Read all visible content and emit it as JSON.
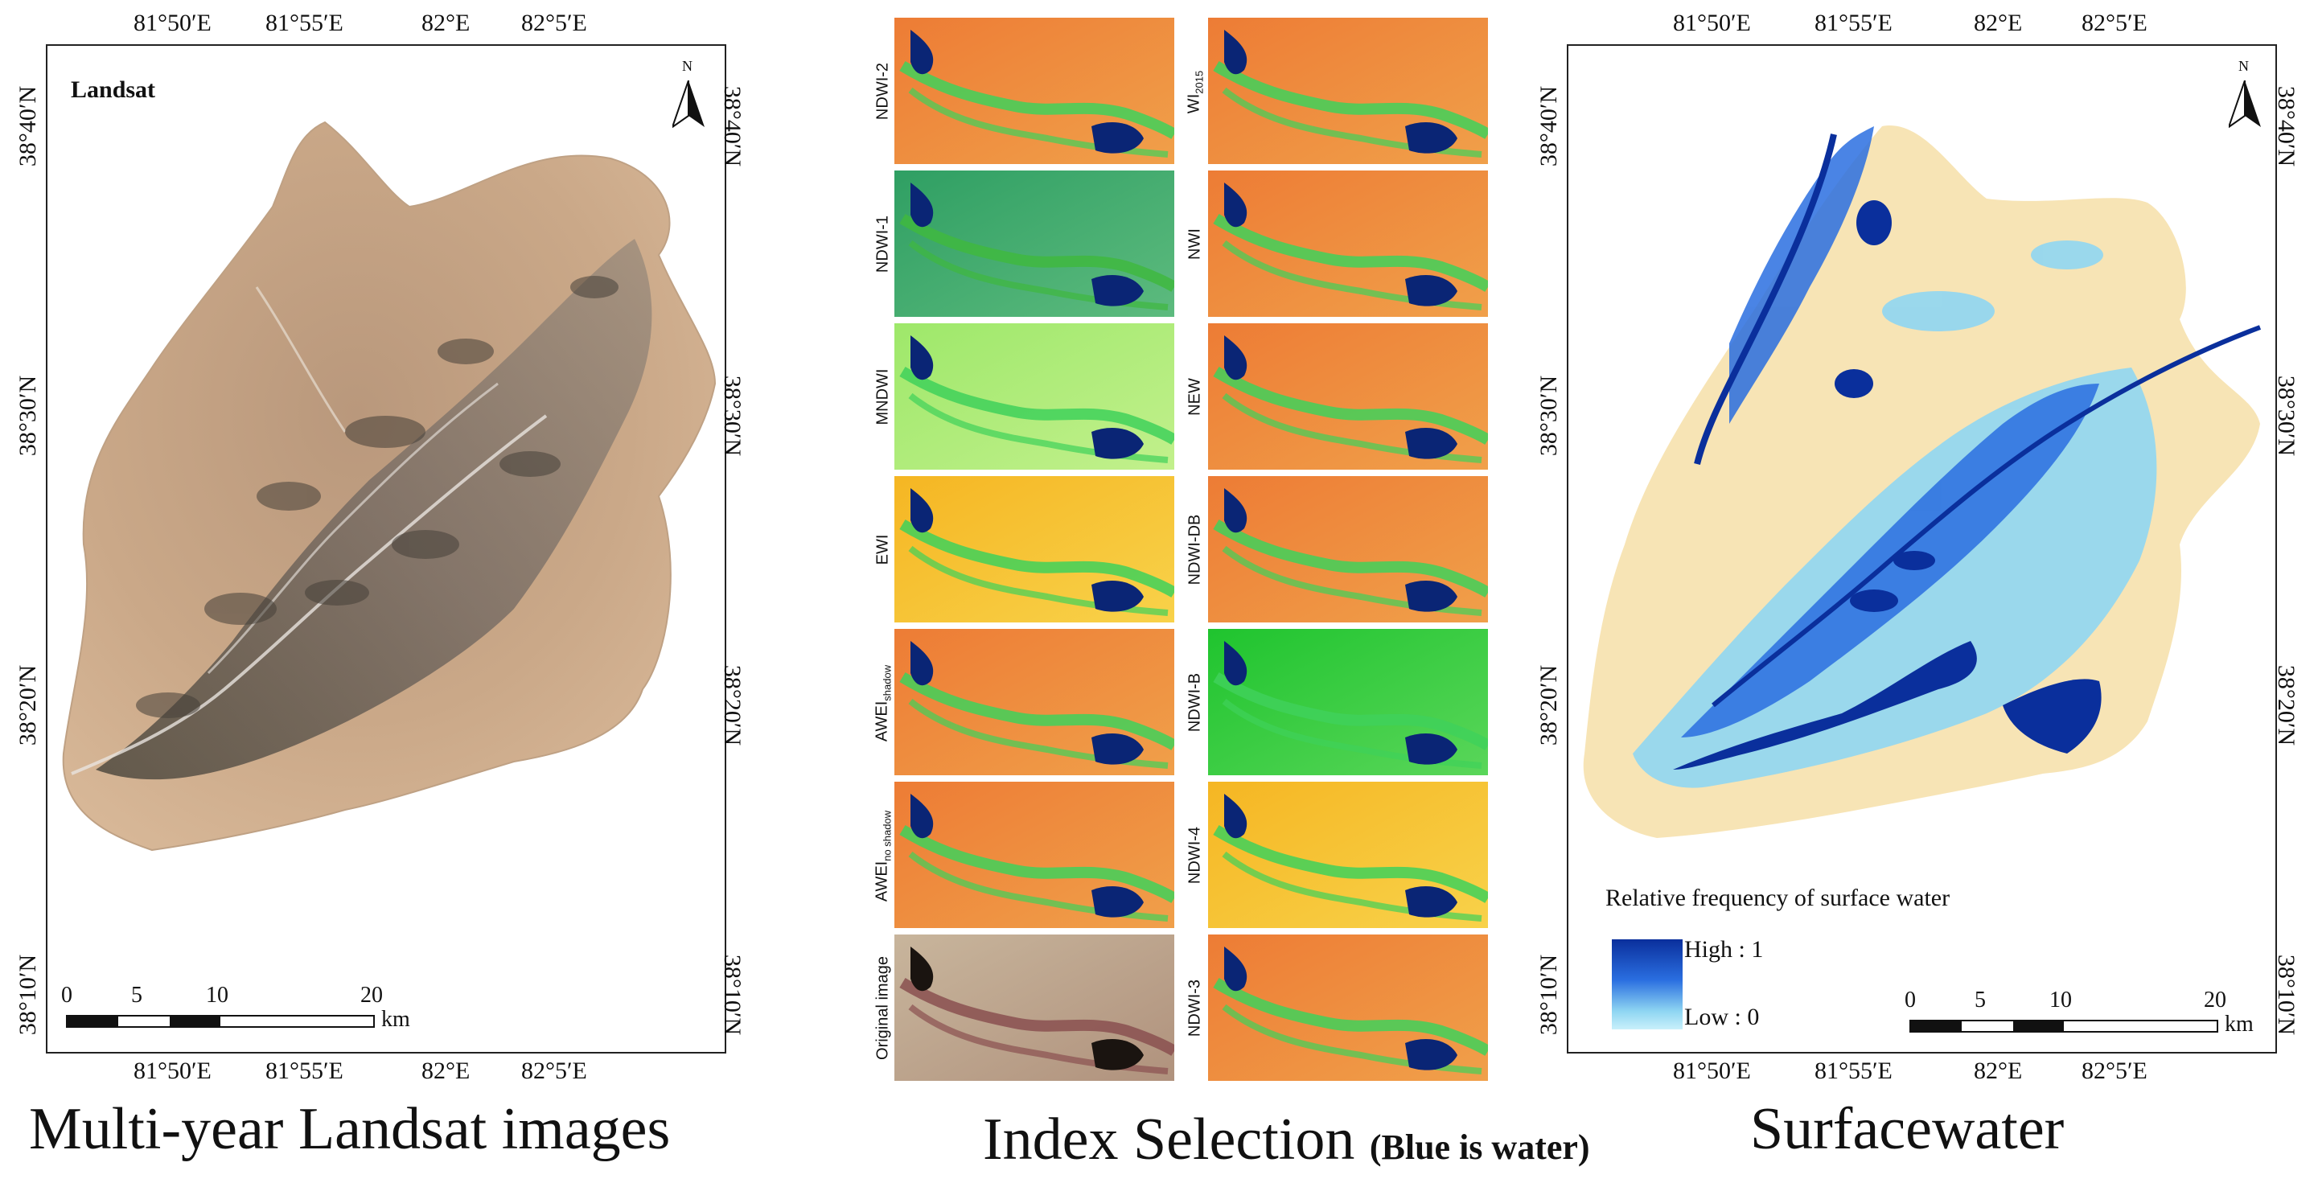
{
  "left_map": {
    "title": "Landsat",
    "lon_ticks": [
      "81°50′E",
      "81°55′E",
      "82°E",
      "82°5′E"
    ],
    "lat_ticks": [
      "38°40′N",
      "38°30′N",
      "38°20′N",
      "38°10′N"
    ],
    "north": "N",
    "scalebar": {
      "ticks": [
        "0",
        "5",
        "10",
        "20"
      ],
      "unit": "km"
    }
  },
  "middle": {
    "panels_left": [
      {
        "label": "NDWI-2",
        "style": "orange"
      },
      {
        "label": "NDWI-1",
        "style": "green"
      },
      {
        "label": "MNDWI",
        "style": "lightgreen"
      },
      {
        "label": "EWI",
        "style": "yellow"
      },
      {
        "label": "AWEI",
        "sub": "shadow",
        "style": "orange"
      },
      {
        "label": "AWEI",
        "sub": "no shadow",
        "style": "orange"
      },
      {
        "label": "Original image",
        "style": "original"
      }
    ],
    "panels_right": [
      {
        "label": "WI",
        "sub": "2015",
        "style": "orange"
      },
      {
        "label": "NWI",
        "style": "orange"
      },
      {
        "label": "NEW",
        "style": "orange"
      },
      {
        "label": "NDWI-DB",
        "style": "orange"
      },
      {
        "label": "NDWI-B",
        "style": "brightgreen"
      },
      {
        "label": "NDWI-4",
        "style": "yellow"
      },
      {
        "label": "NDWI-3",
        "style": "orange"
      }
    ]
  },
  "right_map": {
    "lon_ticks": [
      "81°50′E",
      "81°55′E",
      "82°E",
      "82°5′E"
    ],
    "lat_ticks": [
      "38°40′N",
      "38°30′N",
      "38°20′N",
      "38°10′N"
    ],
    "north": "N",
    "legend": {
      "title": "Relative frequency of surface water",
      "high": "High : 1",
      "low": "Low : 0"
    },
    "scalebar": {
      "ticks": [
        "0",
        "5",
        "10",
        "20"
      ],
      "unit": "km"
    }
  },
  "captions": {
    "left": "Multi-year Landsat images",
    "middle": "Index Selection",
    "middle_note": "(Blue is water)",
    "right": "Surfacewater"
  },
  "colors": {
    "sand": "#c9a886",
    "water_high": "#0a2f9c",
    "water_low": "#8fd6f2",
    "background_right": "#f7e4b5",
    "index_orange": "#ec8a3c",
    "index_green": "#2f9f63"
  }
}
